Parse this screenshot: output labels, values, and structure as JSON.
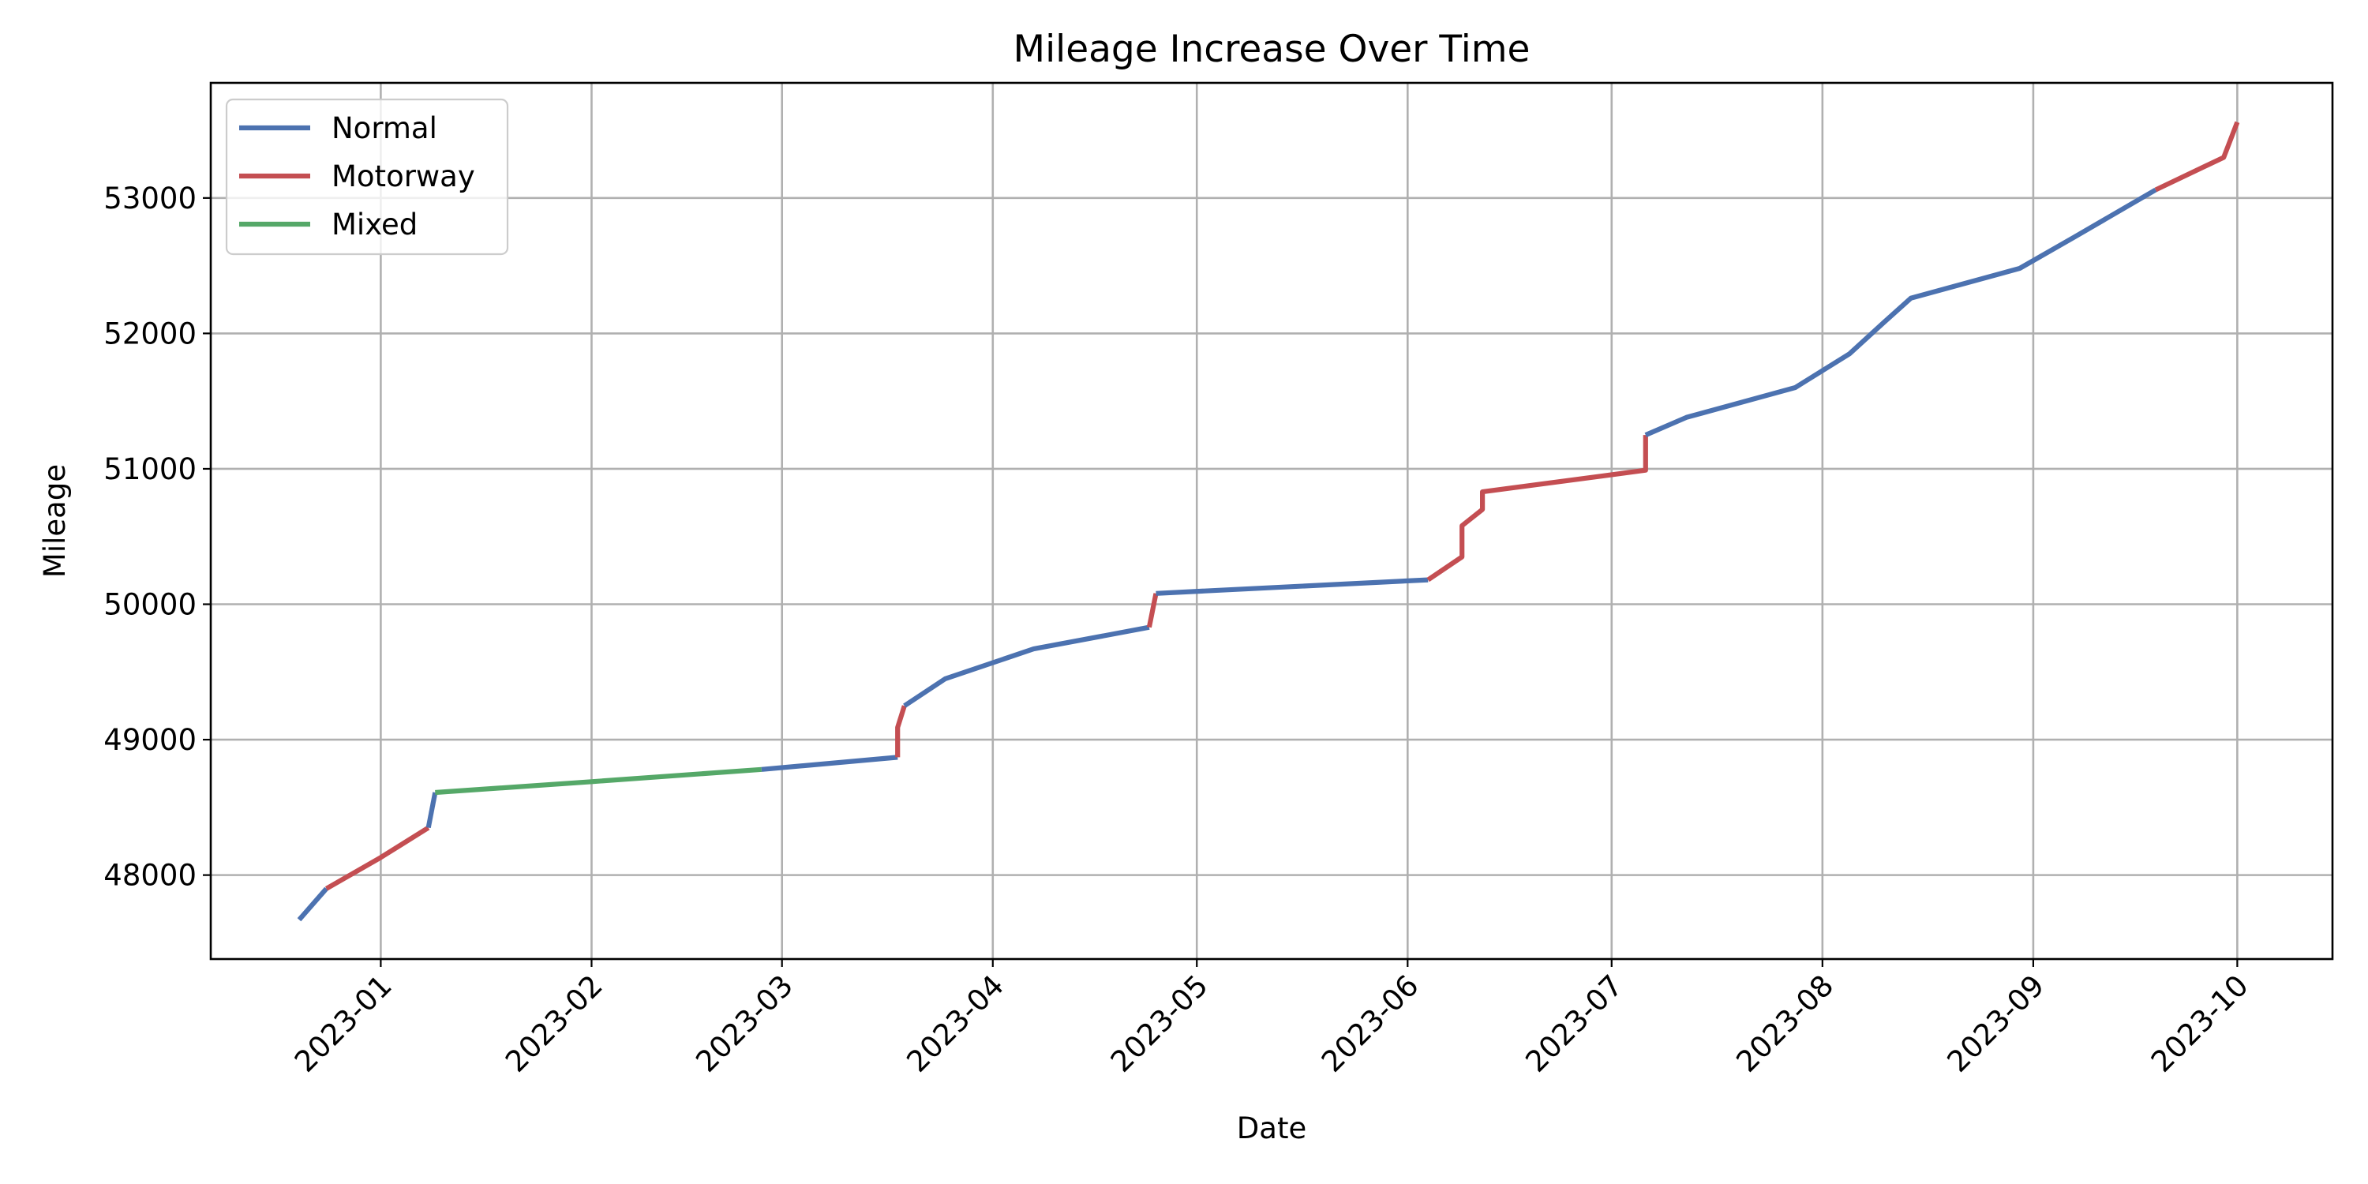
{
  "chart_data": {
    "type": "line",
    "title": "Mileage Increase Over Time",
    "xlabel": "Date",
    "ylabel": "Mileage",
    "grid": true,
    "legend_position": "top-left",
    "xlim": [
      "2022-12-07",
      "2023-10-15"
    ],
    "ylim": [
      47380,
      53850
    ],
    "x_ticks": [
      "2023-01",
      "2023-02",
      "2023-03",
      "2023-04",
      "2023-05",
      "2023-06",
      "2023-07",
      "2023-08",
      "2023-09",
      "2023-10"
    ],
    "y_ticks": [
      48000,
      49000,
      50000,
      51000,
      52000,
      53000
    ],
    "series": [
      {
        "name": "Normal",
        "color": "#4c72b0"
      },
      {
        "name": "Motorway",
        "color": "#c44e52"
      },
      {
        "name": "Mixed",
        "color": "#55a868"
      }
    ],
    "segments": [
      {
        "series": "Normal",
        "points": [
          [
            "2022-12-20",
            47670
          ],
          [
            "2022-12-24",
            47900
          ]
        ]
      },
      {
        "series": "Motorway",
        "points": [
          [
            "2022-12-24",
            47900
          ],
          [
            "2023-01-01",
            48130
          ],
          [
            "2023-01-08",
            48350
          ]
        ]
      },
      {
        "series": "Normal",
        "points": [
          [
            "2023-01-08",
            48350
          ],
          [
            "2023-01-09",
            48610
          ]
        ]
      },
      {
        "series": "Mixed",
        "points": [
          [
            "2023-01-09",
            48610
          ],
          [
            "2023-02-01",
            48690
          ],
          [
            "2023-02-26",
            48780
          ]
        ]
      },
      {
        "series": "Normal",
        "points": [
          [
            "2023-02-26",
            48780
          ],
          [
            "2023-03-18",
            48870
          ]
        ]
      },
      {
        "series": "Motorway",
        "points": [
          [
            "2023-03-18",
            48870
          ],
          [
            "2023-03-18",
            49090
          ],
          [
            "2023-03-19",
            49250
          ]
        ]
      },
      {
        "series": "Normal",
        "points": [
          [
            "2023-03-19",
            49250
          ],
          [
            "2023-03-25",
            49450
          ],
          [
            "2023-04-07",
            49670
          ],
          [
            "2023-04-24",
            49830
          ]
        ]
      },
      {
        "series": "Motorway",
        "points": [
          [
            "2023-04-24",
            49830
          ],
          [
            "2023-04-25",
            50080
          ]
        ]
      },
      {
        "series": "Normal",
        "points": [
          [
            "2023-04-25",
            50080
          ],
          [
            "2023-06-04",
            50180
          ]
        ]
      },
      {
        "series": "Motorway",
        "points": [
          [
            "2023-06-04",
            50180
          ],
          [
            "2023-06-09",
            50350
          ],
          [
            "2023-06-09",
            50580
          ],
          [
            "2023-06-12",
            50700
          ],
          [
            "2023-06-12",
            50830
          ],
          [
            "2023-07-06",
            50990
          ],
          [
            "2023-07-06",
            51250
          ]
        ]
      },
      {
        "series": "Normal",
        "points": [
          [
            "2023-07-06",
            51250
          ],
          [
            "2023-07-12",
            51380
          ],
          [
            "2023-07-28",
            51600
          ],
          [
            "2023-08-05",
            51850
          ],
          [
            "2023-08-10",
            52080
          ],
          [
            "2023-08-14",
            52260
          ],
          [
            "2023-08-30",
            52480
          ],
          [
            "2023-09-07",
            52710
          ],
          [
            "2023-09-19",
            53060
          ]
        ]
      },
      {
        "series": "Motorway",
        "points": [
          [
            "2023-09-19",
            53060
          ],
          [
            "2023-09-29",
            53300
          ],
          [
            "2023-10-01",
            53560
          ]
        ]
      }
    ]
  }
}
